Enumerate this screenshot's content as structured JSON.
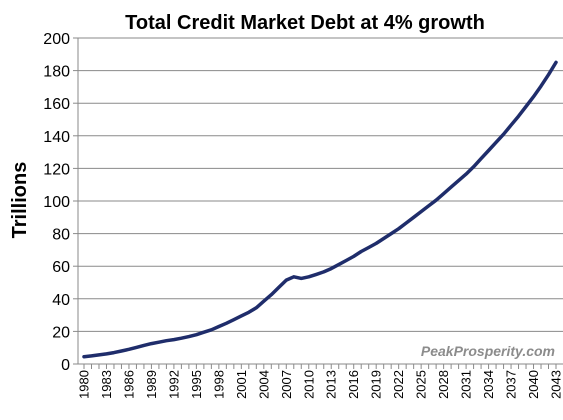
{
  "chart_data": {
    "type": "line",
    "title": "Total Credit Market Debt at 4% growth",
    "ylabel": "Trillions",
    "xlabel": "",
    "watermark": "PeakProsperity.com",
    "ylim": [
      0,
      200
    ],
    "yticks": [
      0,
      20,
      40,
      60,
      80,
      100,
      120,
      140,
      160,
      180,
      200
    ],
    "xticks": [
      "1980",
      "1983",
      "1986",
      "1989",
      "1992",
      "1995",
      "1998",
      "2001",
      "2004",
      "2007",
      "2010",
      "2013",
      "2016",
      "2019",
      "2022",
      "2025",
      "2028",
      "2031",
      "2034",
      "2037",
      "2040",
      "2043"
    ],
    "grid": true,
    "line_color": "#1f2d6b",
    "series": [
      {
        "x": [
          1980,
          1981,
          1982,
          1983,
          1984,
          1985,
          1986,
          1987,
          1988,
          1989,
          1990,
          1991,
          1992,
          1993,
          1994,
          1995,
          1996,
          1997,
          1998,
          1999,
          2000,
          2001,
          2002,
          2003,
          2004,
          2005,
          2006,
          2007,
          2008,
          2009,
          2010,
          2011,
          2012,
          2013,
          2014,
          2015,
          2016,
          2017,
          2018,
          2019,
          2020,
          2021,
          2022,
          2023,
          2024,
          2025,
          2026,
          2027,
          2028,
          2029,
          2030,
          2031,
          2032,
          2033,
          2034,
          2035,
          2036,
          2037,
          2038,
          2039,
          2040,
          2041,
          2042,
          2043
        ],
        "values": [
          4.5,
          5.0,
          5.6,
          6.2,
          7.0,
          8.0,
          9.0,
          10.2,
          11.4,
          12.5,
          13.4,
          14.3,
          15.0,
          15.8,
          16.8,
          18.0,
          19.5,
          21.0,
          23.0,
          25.0,
          27.2,
          29.5,
          31.7,
          34.5,
          38.5,
          42.5,
          47.0,
          51.5,
          53.5,
          52.5,
          53.5,
          55.0,
          56.5,
          58.5,
          61.0,
          63.5,
          66.0,
          69.0,
          71.5,
          74.0,
          77.0,
          80.0,
          83.0,
          86.5,
          90.0,
          93.5,
          97.0,
          100.5,
          104.5,
          108.5,
          112.5,
          116.5,
          121.0,
          126.0,
          131.0,
          136.0,
          141.0,
          146.5,
          152.0,
          158.0,
          164.0,
          170.5,
          177.5,
          185.0
        ]
      }
    ]
  }
}
